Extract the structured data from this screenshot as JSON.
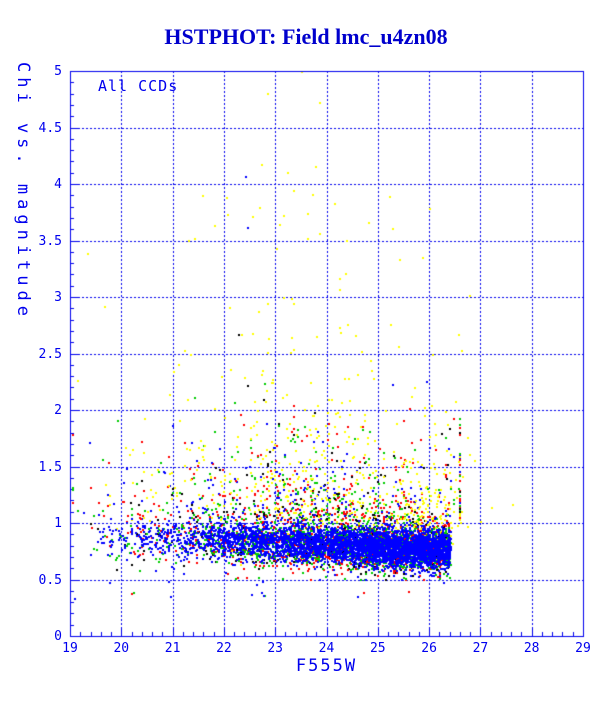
{
  "header": {
    "title": "HSTPHOT: Field lmc_u4zn08"
  },
  "chart_data": {
    "type": "scatter",
    "title": "HSTPHOT: Field lmc_u4zn08",
    "legend_label": "All CCDs",
    "xlabel": "F555W",
    "ylabel": "Chi vs. magnitude",
    "xlim": [
      19,
      29
    ],
    "ylim": [
      0,
      5
    ],
    "x_major_ticks": [
      19,
      20,
      21,
      22,
      23,
      24,
      25,
      26,
      27,
      28,
      29
    ],
    "x_minor_step": 0.2,
    "y_major_ticks": [
      0,
      0.5,
      1,
      1.5,
      2,
      2.5,
      3,
      3.5,
      4,
      4.5,
      5
    ],
    "y_minor_step": 0.1,
    "grid": {
      "x_lines": [
        20,
        21,
        22,
        23,
        24,
        25,
        26,
        27,
        28
      ],
      "y_lines": [
        0.5,
        1,
        1.5,
        2,
        2.5,
        3,
        3.5,
        4,
        4.5
      ],
      "style": "dashed",
      "legend_position": "top-left"
    },
    "colors": {
      "background": "#ffffff",
      "axis": "#0000ee",
      "title": "#0000cd",
      "blue": "#0000ff",
      "green": "#00cd00",
      "red": "#ff0000",
      "black": "#000000",
      "yellow": "#ffff00"
    },
    "point_size": 2,
    "seed": 7,
    "clusters": [
      {
        "name": "band-black",
        "color": "black",
        "count": 420,
        "x": {
          "type": "pow",
          "min": 19.0,
          "max": 26.42,
          "k": 2.6
        },
        "chi": {
          "type": "gauss",
          "mean0": 0.9,
          "tilt": -0.018,
          "sd": 0.12,
          "min": 0.5,
          "max": 1.3
        }
      },
      {
        "name": "band-red",
        "color": "red",
        "count": 950,
        "x": {
          "type": "pow",
          "min": 19.0,
          "max": 26.42,
          "k": 2.6
        },
        "chi": {
          "type": "gauss",
          "mean0": 0.9,
          "tilt": -0.018,
          "sd": 0.115,
          "min": 0.5,
          "max": 1.3
        }
      },
      {
        "name": "band-green",
        "color": "green",
        "count": 1300,
        "x": {
          "type": "pow",
          "min": 19.0,
          "max": 26.42,
          "k": 2.6
        },
        "chi": {
          "type": "gauss",
          "mean0": 0.9,
          "tilt": -0.018,
          "sd": 0.105,
          "min": 0.5,
          "max": 1.3
        }
      },
      {
        "name": "band-yellow-fringe",
        "color": "yellow",
        "count": 130,
        "x": {
          "type": "pow",
          "min": 19.0,
          "max": 26.55,
          "k": 4.0
        },
        "chi": {
          "type": "gauss",
          "mean0": 0.97,
          "tilt": -0.01,
          "sd": 0.13,
          "min": 0.55,
          "max": 1.4
        }
      },
      {
        "name": "below-band-sparse",
        "count": 22,
        "color_weights": {
          "blue": 0.6,
          "red": 0.2,
          "green": 0.2
        },
        "x": {
          "type": "gauss",
          "mean": 22.5,
          "sd": 2.2,
          "min": 19.1,
          "max": 26.3
        },
        "chi": {
          "type": "uniform",
          "min": 0.3,
          "max": 0.58
        }
      },
      {
        "name": "band-blue-core",
        "color": "blue",
        "count": 4200,
        "x": {
          "type": "pow",
          "min": 19.0,
          "max": 26.42,
          "k": 2.6
        },
        "chi": {
          "type": "gauss",
          "mean0": 0.9,
          "tilt": -0.018,
          "sd": 0.085,
          "min": 0.5,
          "max": 1.25
        }
      },
      {
        "name": "upper-mixed-scatter",
        "count": 850,
        "color_weights": {
          "red": 0.27,
          "green": 0.23,
          "blue": 0.2,
          "yellow": 0.2,
          "black": 0.1
        },
        "x": {
          "type": "gauss",
          "mean": 23.9,
          "sd": 1.75,
          "min": 19.05,
          "max": 26.6
        },
        "chi": {
          "type": "expo",
          "base": 1.02,
          "scale": 0.28,
          "max": 2.35
        }
      },
      {
        "name": "yellow-band-end",
        "color": "yellow",
        "count": 90,
        "x": {
          "type": "gauss",
          "mean": 26.05,
          "sd": 0.38,
          "min": 24.8,
          "max": 26.75
        },
        "chi": {
          "type": "expo",
          "base": 0.95,
          "scale": 0.33,
          "max": 2.1
        }
      },
      {
        "name": "yellow-halo",
        "color": "yellow",
        "count": 210,
        "x": {
          "type": "gauss",
          "mean": 23.4,
          "sd": 1.45,
          "min": 19.1,
          "max": 26.8
        },
        "chi": {
          "type": "expo",
          "base": 1.2,
          "scale": 0.75,
          "max": 4.1
        }
      }
    ],
    "outliers": [
      [
        23.53,
        4.99,
        "yellow"
      ],
      [
        22.86,
        4.8,
        "yellow"
      ],
      [
        23.87,
        4.72,
        "yellow"
      ],
      [
        22.74,
        4.17,
        "yellow"
      ],
      [
        23.8,
        4.15,
        "yellow"
      ],
      [
        23.25,
        4.1,
        "yellow"
      ],
      [
        22.43,
        4.06,
        "blue"
      ],
      [
        21.59,
        3.89,
        "yellow"
      ],
      [
        22.06,
        3.88,
        "yellow"
      ],
      [
        23.73,
        3.9,
        "yellow"
      ],
      [
        24.17,
        3.82,
        "yellow"
      ],
      [
        22.08,
        3.73,
        "yellow"
      ],
      [
        22.57,
        3.71,
        "yellow"
      ],
      [
        23.17,
        3.72,
        "yellow"
      ],
      [
        22.47,
        3.61,
        "blue"
      ],
      [
        23.64,
        3.51,
        "yellow"
      ],
      [
        24.4,
        3.5,
        "yellow"
      ],
      [
        21.44,
        3.51,
        "yellow"
      ],
      [
        19.35,
        3.38,
        "yellow"
      ],
      [
        19.68,
        2.91,
        "yellow"
      ],
      [
        22.3,
        2.66,
        "black"
      ],
      [
        19.16,
        2.26,
        "yellow"
      ],
      [
        26.9,
        1.55,
        "yellow"
      ],
      [
        27.22,
        1.13,
        "yellow"
      ],
      [
        27.63,
        1.16,
        "yellow"
      ],
      [
        27.02,
        1.01,
        "yellow"
      ]
    ]
  }
}
